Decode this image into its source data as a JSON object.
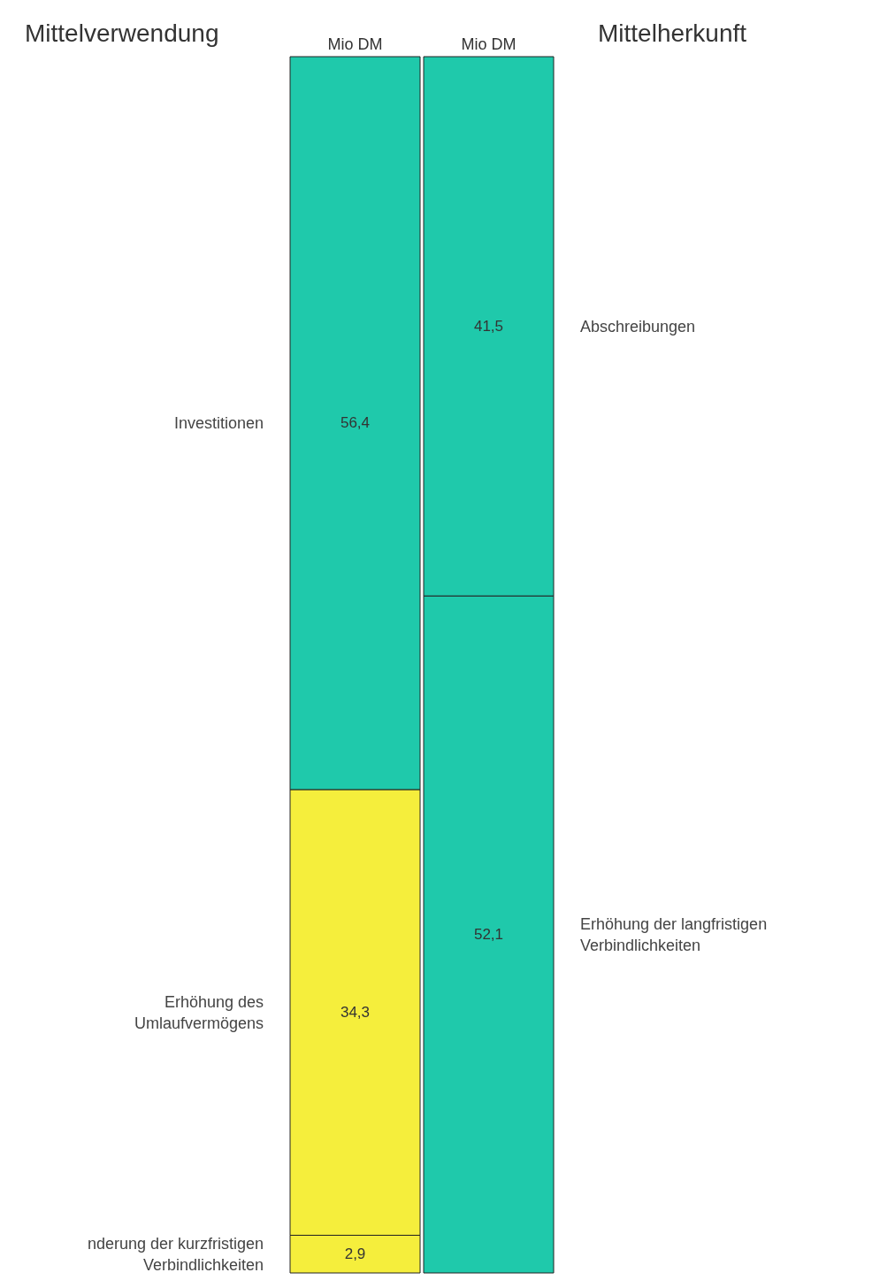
{
  "chart_data": {
    "type": "bar",
    "stacked": true,
    "categories": [
      "Mio DM",
      "Mio DM"
    ],
    "series": [
      {
        "name": "nderung der kurzfristigen Verbindlichkeiten",
        "color": "#f5ee3c",
        "values": [
          2.9,
          null
        ],
        "value_labels": [
          "2,9",
          null
        ]
      },
      {
        "name": "Erhöhung des Umlaufvermögens",
        "color": "#f5ee3c",
        "values": [
          34.3,
          null
        ],
        "value_labels": [
          "34,3",
          null
        ]
      },
      {
        "name": "Investitionen",
        "color": "#1fc9ab",
        "values": [
          56.4,
          null
        ],
        "value_labels": [
          "56,4",
          null
        ]
      },
      {
        "name": "Erhöhung der langfristigen Verbindlichkeiten",
        "color": "#1fc9ab",
        "values": [
          null,
          52.1
        ],
        "value_labels": [
          null,
          "52,1"
        ]
      },
      {
        "name": "Abschreibungen",
        "color": "#1fc9ab",
        "values": [
          null,
          41.5
        ],
        "value_labels": [
          null,
          "41,5"
        ]
      }
    ],
    "annotations": [
      "Mittelverwendung",
      "Mittelherkunft"
    ]
  }
}
